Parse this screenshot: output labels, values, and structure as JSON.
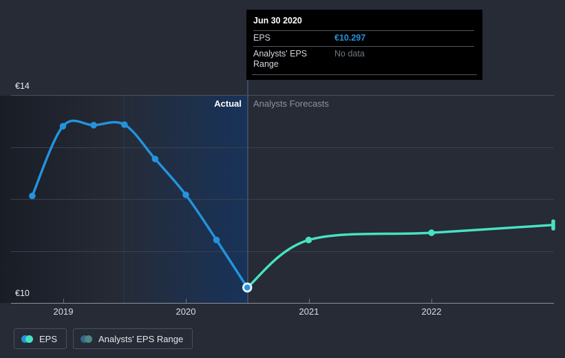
{
  "chart": {
    "y_axis": {
      "top_label": "€14",
      "bottom_label": "€10"
    },
    "x_ticks": [
      {
        "label": "2019",
        "year": 2019
      },
      {
        "label": "2020",
        "year": 2020
      },
      {
        "label": "2021",
        "year": 2021
      },
      {
        "label": "2022",
        "year": 2022
      }
    ],
    "region_labels": {
      "actual": "Actual",
      "forecast": "Analysts Forecasts"
    }
  },
  "tooltip": {
    "title": "Jun 30 2020",
    "rows": [
      {
        "label": "EPS",
        "value": "€10.297"
      },
      {
        "label": "Analysts' EPS Range",
        "value": "No data"
      }
    ]
  },
  "legend": [
    {
      "label": "EPS",
      "colors": [
        "#2393de",
        "#47e2c2"
      ]
    },
    {
      "label": "Analysts' EPS Range",
      "colors": [
        "#38678c",
        "#4d8a84"
      ]
    }
  ],
  "colors": {
    "background": "#262b36",
    "actual_line": "#2393de",
    "forecast_line": "#47e2c2",
    "highlight_band": "#17335b",
    "divider": "#3f4b66",
    "tooltip_bg": "#000000",
    "eps_value": "#2393de",
    "no_data_text": "#6e7884"
  },
  "chart_data": {
    "type": "line",
    "title": "",
    "xlabel": "",
    "ylabel": "",
    "y_tick_labels": [
      "€14",
      "€10"
    ],
    "ylim": [
      10,
      14
    ],
    "x_range": [
      2018.6,
      2023.05
    ],
    "gridline_values": [
      14,
      13,
      12,
      11,
      10
    ],
    "grid": true,
    "legend_position": "bottom-left",
    "divider_x": 2020.5,
    "highlight": {
      "x": 2020.5,
      "value": 10.297,
      "date": "Jun 30 2020"
    },
    "series": [
      {
        "name": "EPS (Actual)",
        "color": "#2393de",
        "x": [
          2018.75,
          2019.0,
          2019.25,
          2019.5,
          2019.75,
          2020.0,
          2020.25,
          2020.5
        ],
        "values": [
          12.06,
          13.4,
          13.42,
          13.43,
          12.77,
          12.08,
          11.21,
          10.297
        ],
        "markers": [
          true,
          true,
          true,
          true,
          true,
          true,
          true,
          false
        ],
        "end_cap": false
      },
      {
        "name": "EPS (Analysts Forecast)",
        "color": "#47e2c2",
        "x": [
          2020.5,
          2021.0,
          2022.0,
          2022.99
        ],
        "values": [
          10.297,
          11.21,
          11.35,
          11.5
        ],
        "markers": [
          false,
          true,
          true,
          false
        ],
        "end_cap": true
      }
    ]
  }
}
